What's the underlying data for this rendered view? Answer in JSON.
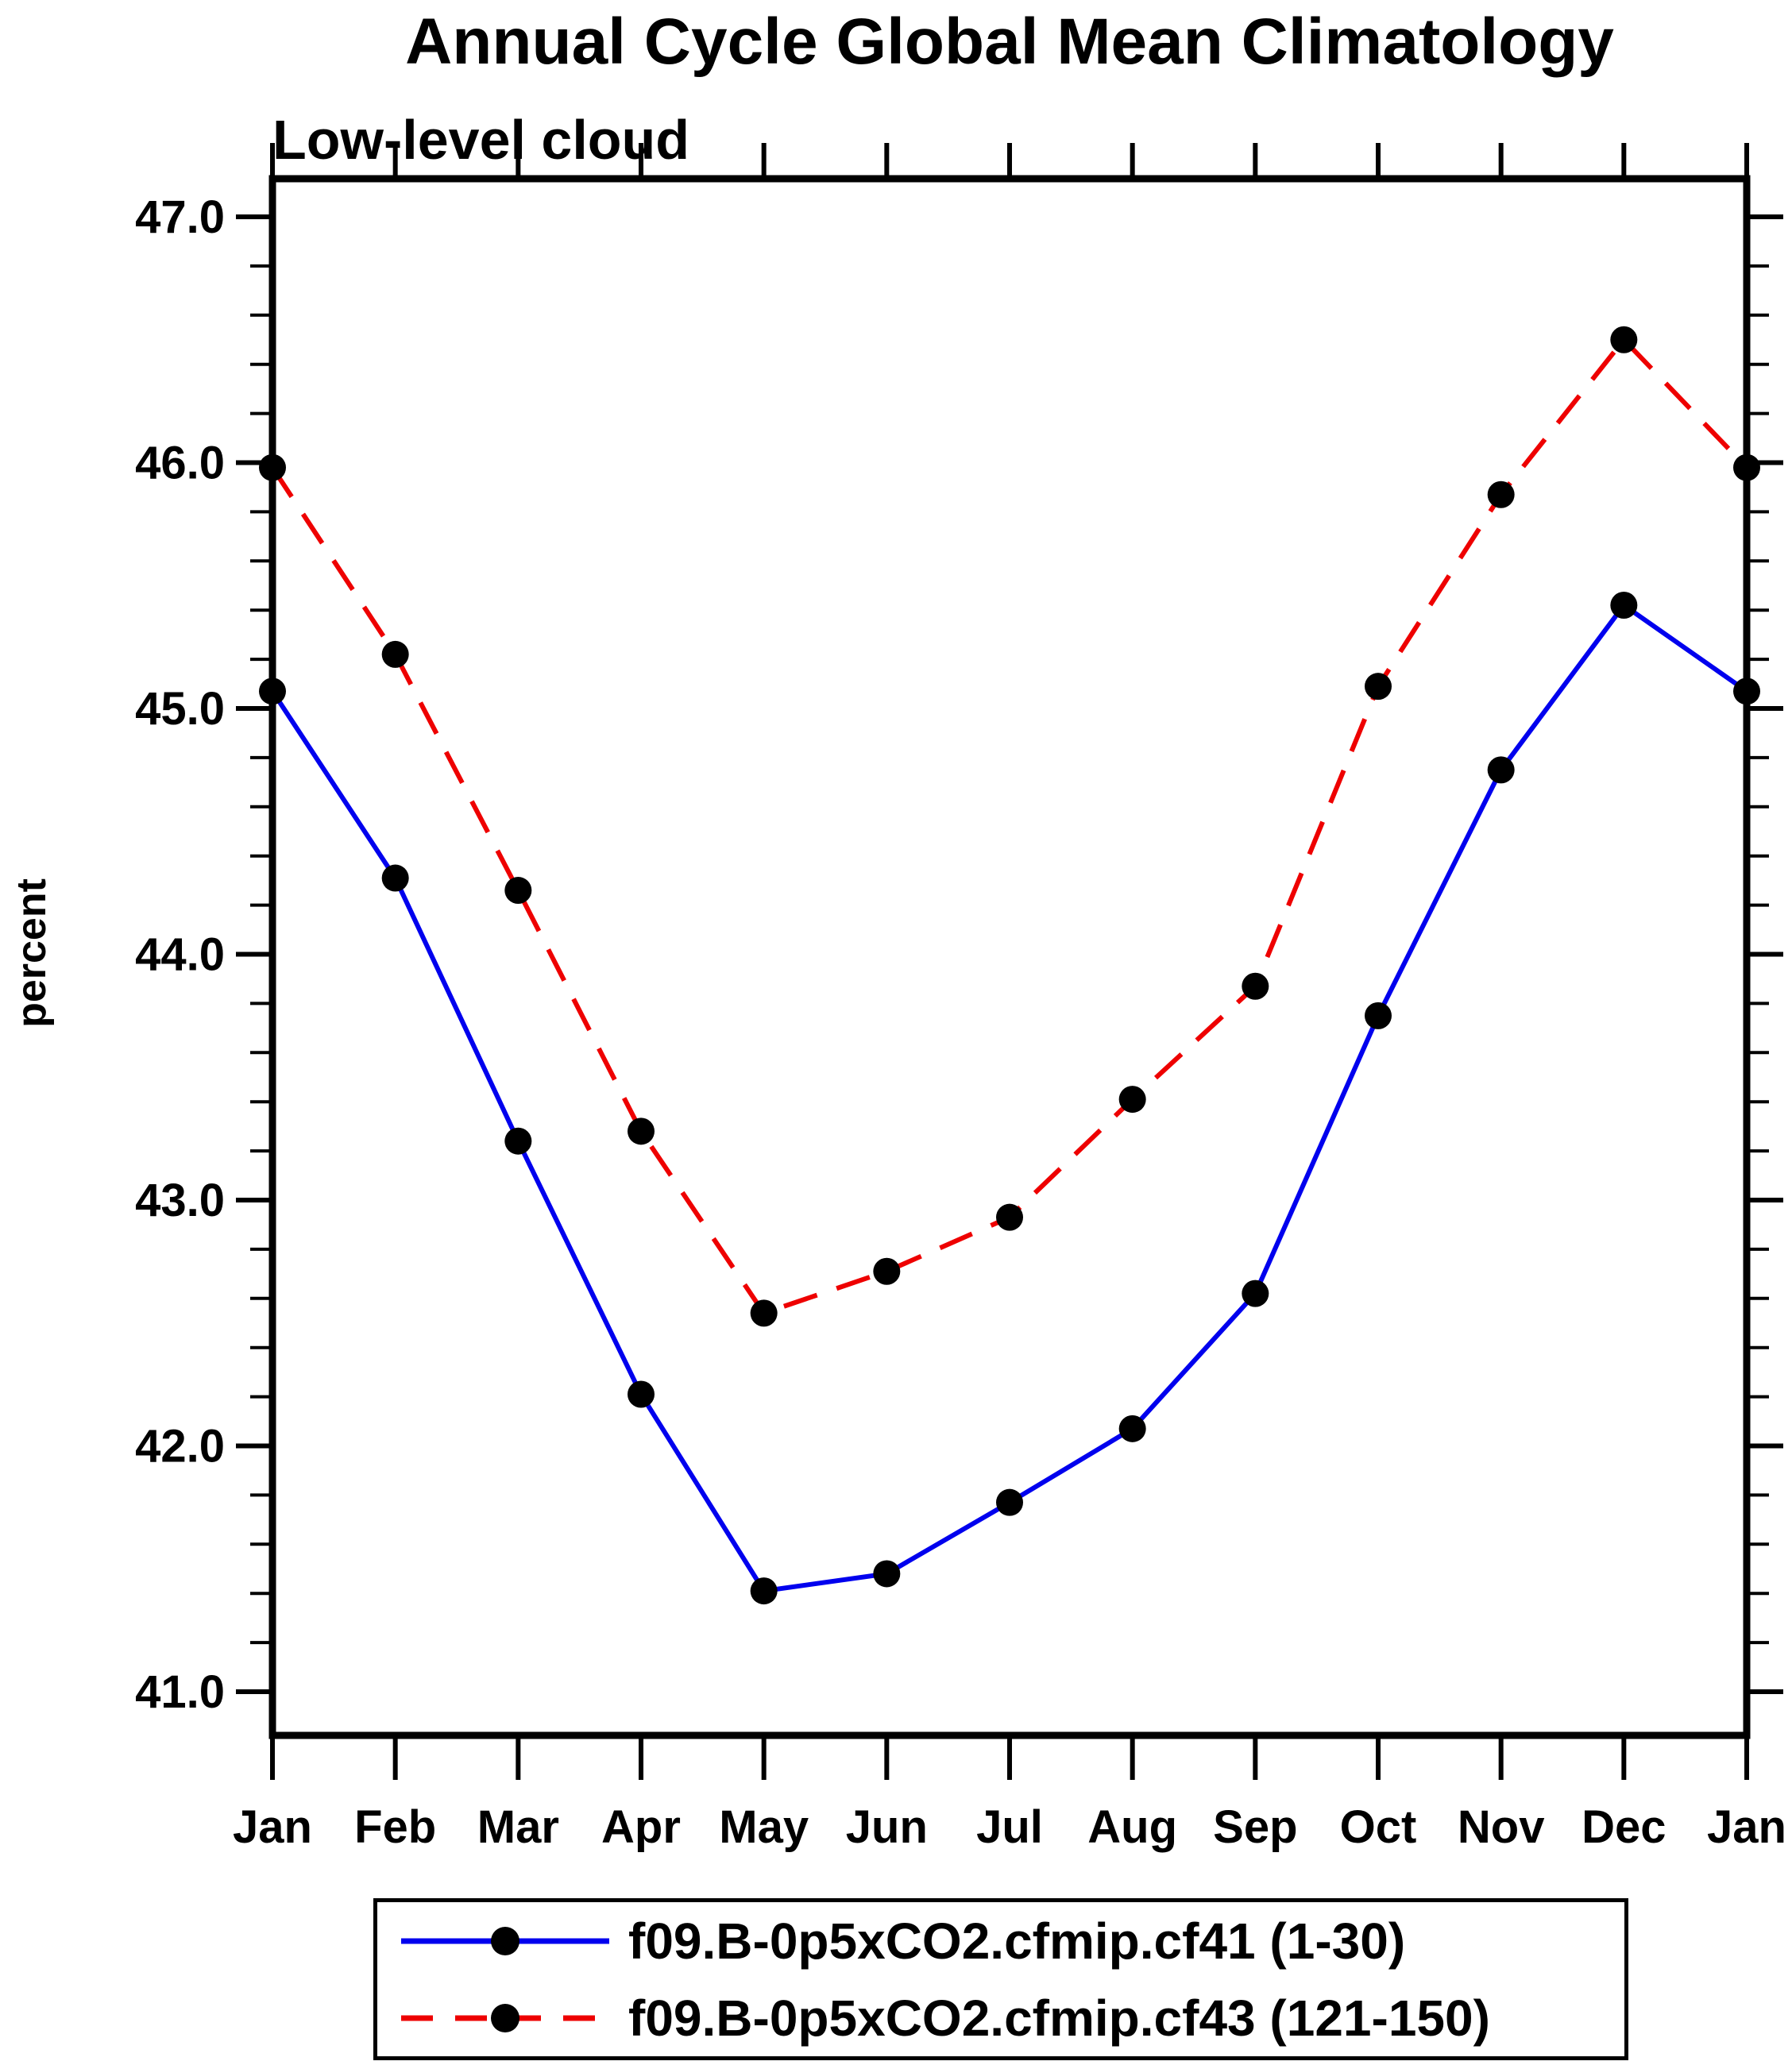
{
  "page": {
    "background": "#ffffff",
    "axis_color": "#000000",
    "text_color": "#000000"
  },
  "chart_data": {
    "type": "line",
    "title": "Annual Cycle Global Mean Climatology",
    "subtitle": "Low-level cloud",
    "ylabel": "percent",
    "xlabel": "",
    "categories": [
      "Jan",
      "Feb",
      "Mar",
      "Apr",
      "May",
      "Jun",
      "Jul",
      "Aug",
      "Sep",
      "Oct",
      "Nov",
      "Dec",
      "Jan"
    ],
    "ylim": [
      41.0,
      47.0
    ],
    "y_ticks": [
      41.0,
      42.0,
      43.0,
      44.0,
      45.0,
      46.0,
      47.0
    ],
    "y_ticklabels": [
      "41.0",
      "42.0",
      "43.0",
      "44.0",
      "45.0",
      "46.0",
      "47.0"
    ],
    "y_minor_step": 0.2,
    "grid": "off",
    "legend_position": "bottom",
    "marker": "filled-circle",
    "marker_color": "#000000",
    "series": [
      {
        "name": "f09.B-0p5xCO2.cfmip.cf41 (1-30)",
        "color": "#0000ee",
        "style": "solid",
        "values": [
          45.07,
          44.31,
          43.24,
          42.21,
          41.41,
          41.48,
          41.77,
          42.07,
          42.62,
          43.75,
          44.75,
          45.42,
          45.07
        ]
      },
      {
        "name": "f09.B-0p5xCO2.cfmip.cf43 (121-150)",
        "color": "#ee0000",
        "style": "dashed",
        "values": [
          45.98,
          45.22,
          44.26,
          43.28,
          42.54,
          42.71,
          42.93,
          43.41,
          43.87,
          45.09,
          45.87,
          46.5,
          45.98
        ]
      }
    ]
  }
}
